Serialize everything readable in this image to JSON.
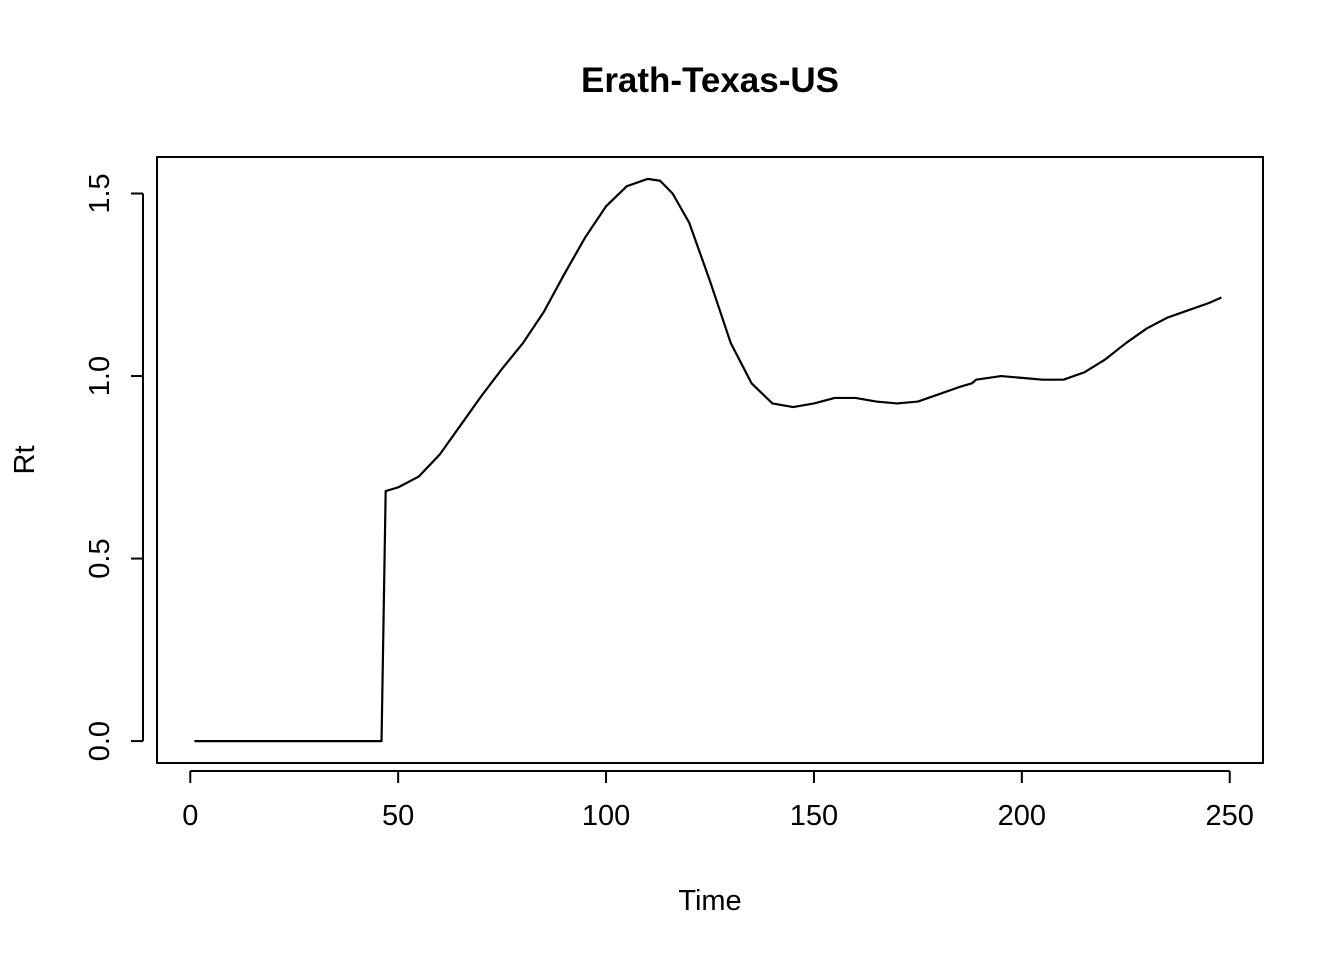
{
  "chart_data": {
    "type": "line",
    "title": "Erath-Texas-US",
    "xlabel": "Time",
    "ylabel": "Rt",
    "xlim": [
      -8,
      258
    ],
    "ylim": [
      -0.06,
      1.6
    ],
    "x_ticks": [
      0,
      50,
      100,
      150,
      200,
      250
    ],
    "x_tick_labels": [
      "0",
      "50",
      "100",
      "150",
      "200",
      "250"
    ],
    "y_ticks": [
      0,
      0.5,
      1,
      1.5
    ],
    "y_tick_labels": [
      "0.0",
      "0.5",
      "1.0",
      "1.5"
    ],
    "grid": false,
    "series": [
      {
        "x": [
          1,
          10,
          20,
          30,
          40,
          46,
          47,
          50,
          55,
          60,
          65,
          70,
          75,
          80,
          85,
          90,
          95,
          100,
          105,
          110,
          113,
          116,
          120,
          125,
          130,
          135,
          140,
          145,
          150,
          155,
          160,
          165,
          170,
          175,
          180,
          185,
          188,
          189,
          195,
          200,
          205,
          210,
          215,
          220,
          225,
          230,
          235,
          240,
          245,
          248
        ],
        "y": [
          0.0,
          0.0,
          0.0,
          0.0,
          0.0,
          0.0,
          0.685,
          0.695,
          0.725,
          0.785,
          0.865,
          0.945,
          1.02,
          1.09,
          1.175,
          1.28,
          1.38,
          1.465,
          1.52,
          1.54,
          1.535,
          1.5,
          1.42,
          1.26,
          1.09,
          0.98,
          0.925,
          0.915,
          0.925,
          0.94,
          0.94,
          0.93,
          0.925,
          0.93,
          0.95,
          0.97,
          0.98,
          0.99,
          1.0,
          0.995,
          0.99,
          0.99,
          1.01,
          1.045,
          1.09,
          1.13,
          1.16,
          1.18,
          1.2,
          1.215
        ]
      }
    ]
  }
}
